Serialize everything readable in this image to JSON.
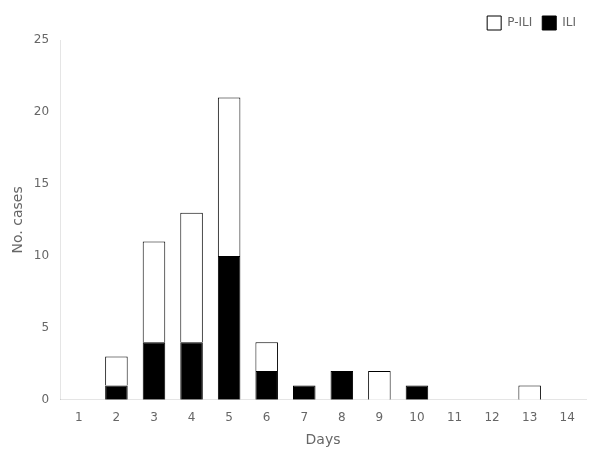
{
  "chart_data": {
    "type": "bar",
    "categories": [
      1,
      2,
      3,
      4,
      5,
      6,
      7,
      8,
      9,
      10,
      11,
      12,
      13,
      14
    ],
    "series": [
      {
        "name": "ILI",
        "color": "#000000",
        "values": [
          0,
          1,
          4,
          4,
          10,
          2,
          1,
          2,
          0,
          1,
          0,
          0,
          0,
          0
        ]
      },
      {
        "name": "P-ILI",
        "color": "#ffffff",
        "values": [
          0,
          2,
          7,
          9,
          11,
          2,
          0,
          0,
          2,
          0,
          0,
          0,
          1,
          0
        ]
      }
    ],
    "xlabel": "Days",
    "ylabel": "No. cases",
    "ylim": [
      0,
      25
    ],
    "yticks": [
      0,
      5,
      10,
      15,
      20,
      25
    ],
    "stacked": true,
    "grid": false,
    "legend": "upper right"
  }
}
